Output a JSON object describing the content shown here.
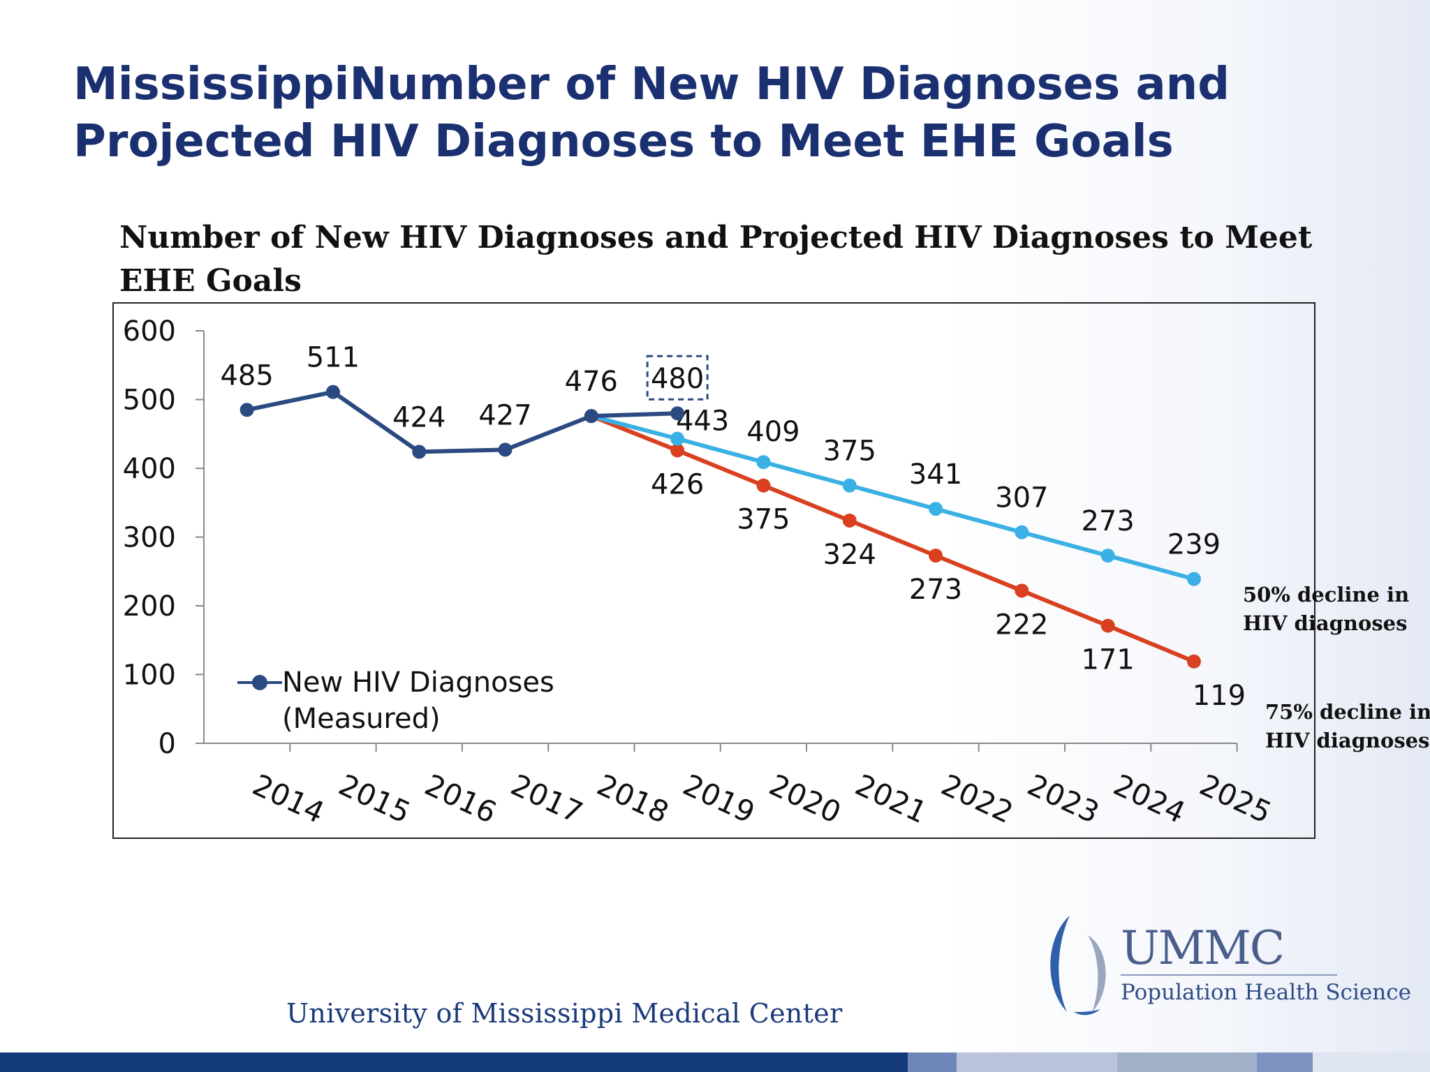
{
  "slide": {
    "title": "MississippiNumber of New HIV Diagnoses and Projected HIV Diagnoses to Meet  EHE Goals",
    "footer_org": "University of Mississippi Medical Center",
    "logo": {
      "name": "UMMC",
      "subtitle": "Population Health Science",
      "icon": "ummc-logo-icon"
    }
  },
  "legend": {
    "label": "New HIV Diagnoses (Measured)",
    "placement": "bottom-left"
  },
  "notes": {
    "fifty": "50% decline in HIV diagnoses",
    "seventyfive": "75% decline in HIV diagnoses"
  },
  "colors": {
    "title": "#1b3070",
    "measured": "#2b4a82",
    "projected_50": "#3bb0e4",
    "projected_75": "#d9401f"
  },
  "chart_data": {
    "type": "line",
    "title": "Number of New HIV Diagnoses and Projected HIV Diagnoses to Meet  EHE Goals",
    "xlabel": "",
    "ylabel": "",
    "ylim": [
      0,
      600
    ],
    "yticks": [
      "0",
      "100",
      "200",
      "300",
      "400",
      "500",
      "600"
    ],
    "categories": [
      "2014",
      "2015",
      "2016",
      "2017",
      "2018",
      "2019",
      "2020",
      "2021",
      "2022",
      "2023",
      "2024",
      "2025"
    ],
    "grid": false,
    "series": [
      {
        "key": "measured",
        "name": "New HIV Diagnoses (Measured)",
        "x": [
          "2014",
          "2015",
          "2016",
          "2017",
          "2018",
          "2019"
        ],
        "values": [
          485,
          511,
          424,
          427,
          476,
          480
        ],
        "labels": [
          "485",
          "511",
          "424",
          "427",
          "476",
          "480"
        ],
        "highlight_last": true
      },
      {
        "key": "projected_50",
        "x": [
          "2018",
          "2019",
          "2020",
          "2021",
          "2022",
          "2023",
          "2024",
          "2025"
        ],
        "values": [
          476,
          443,
          409,
          375,
          341,
          307,
          273,
          239
        ],
        "labels": [
          "",
          "443",
          "409",
          "375",
          "341",
          "307",
          "273",
          "239"
        ]
      },
      {
        "key": "projected_75",
        "x": [
          "2018",
          "2019",
          "2020",
          "2021",
          "2022",
          "2023",
          "2024",
          "2025"
        ],
        "values": [
          476,
          426,
          375,
          324,
          273,
          222,
          171,
          119
        ],
        "labels": [
          "",
          "426",
          "375",
          "324",
          "273",
          "222",
          "171",
          "119"
        ]
      }
    ]
  }
}
